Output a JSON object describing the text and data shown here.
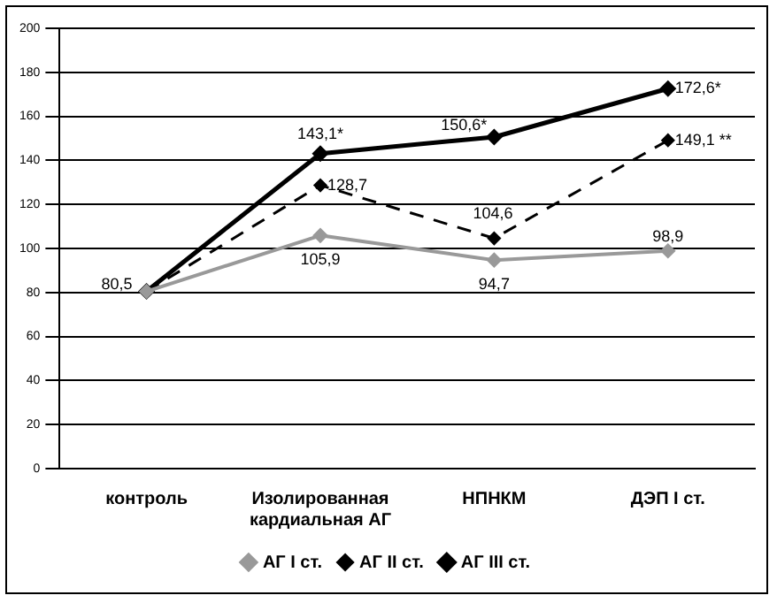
{
  "chart_data": {
    "type": "line",
    "categories": [
      "контроль",
      "Изолированная кардиальная АГ",
      "НПНКМ",
      "ДЭП I ст."
    ],
    "series": [
      {
        "name": "АГ I ст.",
        "color": "#999999",
        "values": [
          80.5,
          105.9,
          94.7,
          98.9
        ],
        "value_labels": [
          "80,5",
          "105,9",
          "94,7",
          "98,9"
        ]
      },
      {
        "name": "АГ II ст.",
        "color": "#000000",
        "line_style": "dashed",
        "values": [
          80.5,
          128.7,
          104.6,
          149.1
        ],
        "value_labels": [
          null,
          "128,7",
          "104,6",
          "149,1 **"
        ]
      },
      {
        "name": "АГ III ст.",
        "color": "#000000",
        "values": [
          80.5,
          143.1,
          150.6,
          172.6
        ],
        "value_labels": [
          null,
          "143,1*",
          "150,6*",
          "172,6*"
        ]
      }
    ],
    "ylim": [
      0,
      200
    ],
    "yticks": [
      0,
      20,
      40,
      60,
      80,
      100,
      120,
      140,
      160,
      180,
      200
    ],
    "grid": "y",
    "legend": "bottom",
    "marker": "diamond",
    "line_style": "solid"
  }
}
